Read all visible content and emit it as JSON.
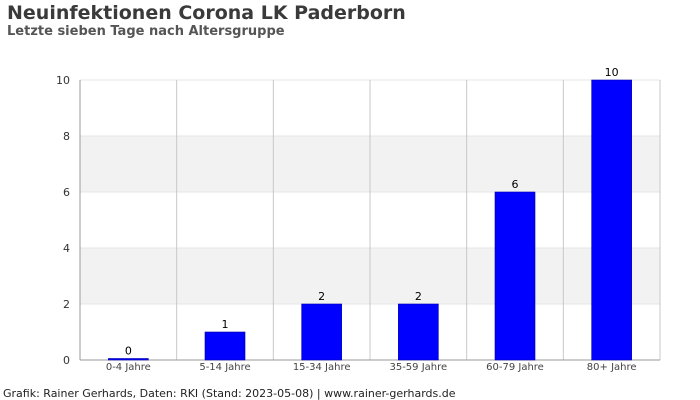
{
  "header": {
    "title": "Neuinfektionen Corona LK Paderborn",
    "subtitle": "Letzte sieben Tage nach Altersgruppe"
  },
  "footer": {
    "credit": "Grafik: Rainer Gerhards, Daten: RKI (Stand: 2023-05-08) | www.rainer-gerhards.de"
  },
  "colors": {
    "bar": "#0000ff",
    "band": "#f2f2f2",
    "grid": "#c8c8c8"
  },
  "chart_data": {
    "type": "bar",
    "title": "Neuinfektionen Corona LK Paderborn",
    "subtitle": "Letzte sieben Tage nach Altersgruppe",
    "xlabel": "",
    "ylabel": "",
    "categories": [
      "0-4 Jahre",
      "5-14 Jahre",
      "15-34 Jahre",
      "35-59 Jahre",
      "60-79 Jahre",
      "80+ Jahre"
    ],
    "values": [
      0,
      1,
      2,
      2,
      6,
      10
    ],
    "data_labels": [
      "0",
      "1",
      "2",
      "2",
      "6",
      "10"
    ],
    "ylim": [
      0,
      10
    ],
    "yticks": [
      0,
      2,
      4,
      6,
      8,
      10
    ],
    "grid": true,
    "legend": "none"
  }
}
